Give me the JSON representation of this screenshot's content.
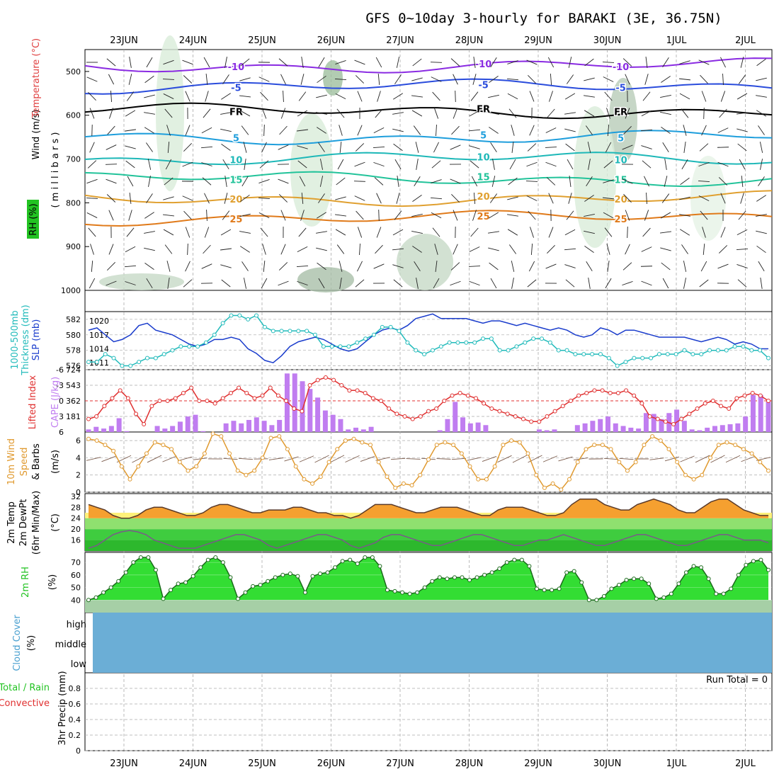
{
  "title": "GFS 0~10day 3-hourly for BARAKI (3E, 36.75N)",
  "date_ticks": [
    "23JUN",
    "24JUN",
    "25JUN",
    "26JUN",
    "27JUN",
    "28JUN",
    "29JUN",
    "30JUN",
    "1JUL",
    "2JUL"
  ],
  "colors": {
    "grid": "#aaaaaa",
    "temp": "#e07a1a",
    "dew": "#7a5a8a",
    "rh_green": "#22c322",
    "cape": "#c07df0",
    "lifted": "#e03030",
    "slp": "#1a3ccc",
    "thick": "#22bbbb",
    "wind10": "#e09a30",
    "cloud": "#6baed6"
  },
  "chart_data": [
    {
      "type": "contour",
      "panel": "upper-air",
      "labels": {
        "wind": "Wind (m/s)",
        "temp": "Temperature (°C)",
        "rh": "RH (%)",
        "unit": "( m i l l i b a r s )"
      },
      "y_ticks": [
        "500",
        "600",
        "700",
        "800",
        "900",
        "1000"
      ],
      "ylim": [
        1000,
        450
      ],
      "isotherms": [
        {
          "label": "-10",
          "level": 487,
          "color": "#8a2be2"
        },
        {
          "label": "-5",
          "level": 535,
          "color": "#2a4cdc"
        },
        {
          "label": "FR",
          "level": 590,
          "color": "#000000"
        },
        {
          "label": "5",
          "level": 650,
          "color": "#1e9edc"
        },
        {
          "label": "10",
          "level": 700,
          "color": "#1eb8b8"
        },
        {
          "label": "15",
          "level": 745,
          "color": "#22c39a"
        },
        {
          "label": "20",
          "level": 790,
          "color": "#e0a030"
        },
        {
          "label": "25",
          "level": 835,
          "color": "#e07a1a"
        }
      ]
    },
    {
      "type": "line",
      "panel": "slp-thickness",
      "labels": {
        "thick": "1000-500mb",
        "thick2": "Thickness (dm)",
        "slp": "SLP (mb)"
      },
      "left_ticks": [
        "576",
        "578",
        "580",
        "582"
      ],
      "left_ylim": [
        575.5,
        583
      ],
      "right_ticks": [
        "1011",
        "1014",
        "1017",
        "1020"
      ],
      "right_ylim": [
        1009.5,
        1022
      ],
      "slp": [
        1018,
        1018.5,
        1017,
        1015.5,
        1016,
        1017,
        1019,
        1019.5,
        1018,
        1017.5,
        1017,
        1016,
        1015,
        1014.5,
        1015,
        1016,
        1016,
        1016.5,
        1016,
        1014,
        1013,
        1011.5,
        1011,
        1012.5,
        1014.5,
        1015.5,
        1016,
        1016.5,
        1016,
        1015,
        1014,
        1013.5,
        1014,
        1015.5,
        1017,
        1018,
        1018.5,
        1018,
        1019,
        1020.5,
        1021,
        1021.5,
        1020.5,
        1020.5,
        1020.5,
        1020.5,
        1020,
        1019.5,
        1020,
        1020,
        1019.5,
        1019,
        1019.5,
        1019,
        1018.5,
        1018,
        1018.5,
        1018,
        1017,
        1016.5,
        1017,
        1018.5,
        1018,
        1017,
        1018,
        1018,
        1017.5,
        1017,
        1016.5,
        1016.5,
        1016.5,
        1016.5,
        1016,
        1015.5,
        1016,
        1016.5,
        1016,
        1015,
        1015.5,
        1015,
        1014,
        1014
      ],
      "thickness": [
        576.5,
        576.5,
        577.5,
        577,
        576,
        576,
        576.5,
        577,
        577,
        577.5,
        578,
        578.5,
        578.5,
        578.5,
        579,
        580,
        581.5,
        582.5,
        582.5,
        582,
        582.5,
        581,
        580.5,
        580.5,
        580.5,
        580.5,
        580.5,
        580,
        578.5,
        578.5,
        578.5,
        578.5,
        579,
        579.5,
        580,
        581,
        581,
        580.5,
        579,
        578,
        577.5,
        578,
        578.5,
        579,
        579,
        579,
        579,
        579.5,
        579.5,
        578,
        578,
        578.5,
        579,
        579.5,
        579.5,
        579,
        578,
        578,
        577.5,
        577.5,
        577.5,
        577.5,
        577,
        576,
        576.5,
        577,
        577,
        577,
        577.5,
        577.5,
        577.5,
        578,
        577.5,
        577.5,
        578,
        578,
        578,
        578.5,
        578.5,
        578,
        578,
        577
      ]
    },
    {
      "type": "bar",
      "panel": "cape-lifted-index",
      "labels": {
        "li": "Lifted Index",
        "cape": "CAPE (J/kg)"
      },
      "left_ticks": [
        "-6",
        "-3",
        "0",
        "3",
        "6"
      ],
      "right_ticks": [
        "181",
        "362",
        "543",
        "724"
      ],
      "cape_ylim": [
        0,
        724
      ],
      "li_ylim": [
        6,
        -6
      ],
      "cape": [
        30,
        60,
        40,
        70,
        160,
        10,
        0,
        0,
        0,
        70,
        40,
        70,
        120,
        180,
        200,
        10,
        0,
        0,
        100,
        130,
        100,
        140,
        170,
        130,
        80,
        140,
        680,
        680,
        590,
        500,
        400,
        250,
        200,
        150,
        30,
        50,
        30,
        60,
        0,
        0,
        0,
        0,
        0,
        0,
        0,
        0,
        20,
        150,
        350,
        170,
        100,
        110,
        80,
        0,
        0,
        0,
        0,
        0,
        0,
        30,
        20,
        30,
        0,
        0,
        80,
        100,
        130,
        150,
        180,
        100,
        70,
        50,
        40,
        220,
        210,
        150,
        220,
        260,
        130,
        30,
        20,
        50,
        70,
        80,
        90,
        100,
        180,
        430,
        430,
        350
      ],
      "lifted_index": [
        3.5,
        3,
        1,
        -0.5,
        -2,
        -0.5,
        2.5,
        4.5,
        1,
        0,
        0,
        -0.5,
        -1.5,
        -2.5,
        0,
        0,
        0.5,
        -0.5,
        -1.5,
        -2.5,
        -1.5,
        -0.5,
        -1,
        -2.5,
        -1,
        0,
        1.5,
        2,
        -3,
        -4,
        -4.5,
        -4,
        -3,
        -2,
        -2,
        -1.5,
        -0.5,
        0,
        1.5,
        2.5,
        3,
        3.5,
        3,
        2,
        1.5,
        0,
        -1,
        -1.5,
        -1,
        -0.5,
        0.5,
        1.5,
        2,
        2.5,
        3,
        3.5,
        4,
        4,
        3,
        2,
        1,
        0,
        -1,
        -1.5,
        -2,
        -2,
        -1.5,
        -1.5,
        -2,
        -1,
        0.5,
        3,
        3.5,
        4,
        4.5,
        3.5,
        2.5,
        1.5,
        0.5,
        0,
        1,
        1.5,
        -0.5,
        -1,
        -1.5,
        -1,
        0
      ]
    },
    {
      "type": "line",
      "panel": "10m-wind",
      "labels": {
        "title": "10m Wind",
        "speed": "Speed",
        "barbs": "& Barbs",
        "unit": "(m/s)"
      },
      "y_ticks": [
        "0",
        "2",
        "4",
        "6"
      ],
      "ylim": [
        0,
        7
      ],
      "speed": [
        6.2,
        6,
        5.5,
        4.8,
        3,
        1.5,
        3,
        4.5,
        5.8,
        5.5,
        5,
        3.5,
        2.5,
        3,
        4.5,
        6.8,
        6.5,
        4.5,
        2.5,
        2,
        2.5,
        4,
        6.3,
        6.5,
        5,
        3,
        1.5,
        1,
        1.8,
        3.5,
        5,
        6,
        6.2,
        5.8,
        5.5,
        3.5,
        1.8,
        0.5,
        1,
        0.8,
        2,
        3.8,
        5.5,
        5.8,
        5.5,
        4.5,
        3,
        1.5,
        1.5,
        3,
        5.5,
        6,
        5.8,
        4.5,
        2,
        0.5,
        1,
        0.3,
        1.5,
        3.5,
        5,
        5.5,
        5.5,
        5,
        3.5,
        2.5,
        3.5,
        5.5,
        6.5,
        6,
        5,
        3.5,
        2,
        1.5,
        2,
        4,
        5.5,
        5.8,
        5.5,
        5,
        4.5,
        3.5,
        2.5
      ]
    },
    {
      "type": "area",
      "panel": "2m-temp",
      "labels": {
        "temp": "2m Temp",
        "dew": "2m DewPt",
        "minmax": "(6hr Min/Max)",
        "unit": "(°C)"
      },
      "y_ticks": [
        "16",
        "20",
        "24",
        "28",
        "32"
      ],
      "ylim": [
        12,
        33
      ],
      "temp": [
        29,
        28,
        27,
        25,
        24,
        24,
        25,
        27,
        28,
        28,
        27,
        26,
        25,
        25,
        26,
        28,
        29,
        29,
        28,
        27,
        26,
        26,
        27,
        27,
        27,
        28,
        28,
        27,
        26,
        26,
        25,
        25,
        24,
        25,
        27,
        29,
        29,
        29,
        28,
        27,
        26,
        26,
        27,
        28,
        28,
        28,
        27,
        26,
        25,
        25,
        27,
        28,
        28,
        28,
        27,
        26,
        25,
        25,
        26,
        29,
        31,
        31,
        31,
        29,
        28,
        27,
        27,
        29,
        30,
        31,
        30,
        29,
        27,
        26,
        26,
        28,
        30,
        31,
        31,
        29,
        27,
        26,
        25,
        25
      ],
      "dewpoint": [
        13,
        14,
        16,
        18,
        19,
        19.5,
        19,
        18,
        16,
        15,
        14,
        13,
        13,
        13,
        14,
        15,
        16,
        17,
        18,
        18,
        17,
        16,
        14,
        13,
        14,
        15,
        16,
        17,
        18,
        18,
        17,
        16,
        14,
        13,
        14,
        15,
        17,
        18,
        18,
        17,
        16,
        15,
        14,
        14,
        15,
        16,
        17,
        18,
        18,
        17,
        16,
        15,
        14,
        14,
        15,
        16,
        16,
        17,
        18,
        17,
        16,
        15,
        14,
        14,
        15,
        16,
        17,
        18,
        18,
        17,
        16,
        15,
        14,
        14,
        15,
        16,
        17,
        18,
        18,
        17,
        16,
        16,
        16,
        15
      ]
    },
    {
      "type": "area",
      "panel": "2m-rh",
      "labels": {
        "title": "2m RH",
        "unit": "(%)"
      },
      "y_ticks": [
        "40",
        "50",
        "60",
        "70"
      ],
      "ylim": [
        30,
        78
      ],
      "rh": [
        40,
        42,
        46,
        50,
        55,
        62,
        70,
        74,
        74,
        64,
        41,
        48,
        53,
        54,
        59,
        66,
        72,
        74,
        70,
        58,
        41,
        46,
        51,
        52,
        55,
        58,
        60,
        61,
        59,
        46,
        59,
        61,
        62,
        66,
        71,
        72,
        69,
        74,
        74,
        67,
        48,
        47,
        46,
        45,
        46,
        50,
        55,
        58,
        57,
        58,
        58,
        56,
        58,
        60,
        62,
        65,
        70,
        72,
        72,
        67,
        49,
        48,
        48,
        49,
        62,
        63,
        54,
        40,
        40,
        43,
        49,
        52,
        56,
        57,
        57,
        53,
        41,
        42,
        45,
        53,
        62,
        67,
        66,
        57,
        45,
        45,
        49,
        60,
        68,
        71,
        72,
        64
      ]
    },
    {
      "type": "area",
      "panel": "cloud-cover",
      "labels": {
        "title": "Cloud Cover",
        "unit": "(%)",
        "high": "high",
        "middle": "middle",
        "low": "low"
      }
    },
    {
      "type": "bar",
      "panel": "precip",
      "labels": {
        "total": "Total / Rain",
        "conv": "Convective",
        "unit": "3hr Precip (mm)",
        "run_total": "Run Total = 0"
      },
      "y_ticks": [
        "0",
        "0.2",
        "0.4",
        "0.6",
        "0.8"
      ],
      "ylim": [
        0,
        1
      ]
    }
  ]
}
